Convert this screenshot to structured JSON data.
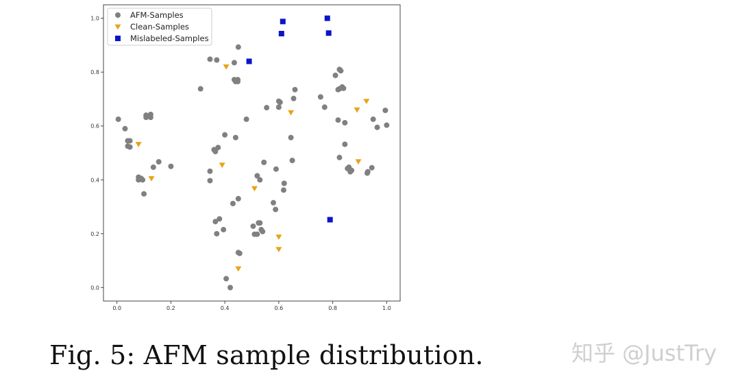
{
  "chart_data": {
    "type": "scatter",
    "title": "",
    "xlabel": "",
    "ylabel": "",
    "xlim": [
      -0.05,
      1.05
    ],
    "ylim": [
      -0.05,
      1.05
    ],
    "xticks": [
      0.0,
      0.2,
      0.4,
      0.6,
      0.8,
      1.0
    ],
    "yticks": [
      0.0,
      0.2,
      0.4,
      0.6,
      0.8,
      1.0
    ],
    "xtick_labels": [
      "0.0",
      "0.2",
      "0.4",
      "0.6",
      "0.8",
      "1.0"
    ],
    "ytick_labels": [
      "0.0",
      "0.2",
      "0.4",
      "0.6",
      "0.8",
      "1.0"
    ],
    "grid": false,
    "legend_position": "top-left",
    "series": [
      {
        "name": "AFM-Samples",
        "marker": "circle",
        "color": "#808080",
        "points": [
          [
            0.005,
            0.625
          ],
          [
            0.03,
            0.59
          ],
          [
            0.04,
            0.545
          ],
          [
            0.048,
            0.545
          ],
          [
            0.04,
            0.525
          ],
          [
            0.048,
            0.522
          ],
          [
            0.08,
            0.41
          ],
          [
            0.09,
            0.405
          ],
          [
            0.08,
            0.4
          ],
          [
            0.095,
            0.4
          ],
          [
            0.1,
            0.348
          ],
          [
            0.108,
            0.64
          ],
          [
            0.108,
            0.632
          ],
          [
            0.125,
            0.643
          ],
          [
            0.125,
            0.632
          ],
          [
            0.135,
            0.447
          ],
          [
            0.155,
            0.467
          ],
          [
            0.2,
            0.45
          ],
          [
            0.31,
            0.738
          ],
          [
            0.345,
            0.848
          ],
          [
            0.37,
            0.845
          ],
          [
            0.345,
            0.432
          ],
          [
            0.345,
            0.397
          ],
          [
            0.36,
            0.512
          ],
          [
            0.365,
            0.505
          ],
          [
            0.375,
            0.52
          ],
          [
            0.365,
            0.245
          ],
          [
            0.38,
            0.255
          ],
          [
            0.37,
            0.2
          ],
          [
            0.395,
            0.215
          ],
          [
            0.4,
            0.567
          ],
          [
            0.405,
            0.033
          ],
          [
            0.42,
            0.0
          ],
          [
            0.435,
            0.835
          ],
          [
            0.435,
            0.772
          ],
          [
            0.44,
            0.765
          ],
          [
            0.448,
            0.772
          ],
          [
            0.448,
            0.765
          ],
          [
            0.45,
            0.893
          ],
          [
            0.44,
            0.557
          ],
          [
            0.43,
            0.312
          ],
          [
            0.45,
            0.33
          ],
          [
            0.45,
            0.13
          ],
          [
            0.455,
            0.127
          ],
          [
            0.48,
            0.625
          ],
          [
            0.52,
            0.415
          ],
          [
            0.53,
            0.4
          ],
          [
            0.545,
            0.465
          ],
          [
            0.505,
            0.228
          ],
          [
            0.51,
            0.198
          ],
          [
            0.52,
            0.198
          ],
          [
            0.525,
            0.24
          ],
          [
            0.53,
            0.24
          ],
          [
            0.535,
            0.215
          ],
          [
            0.54,
            0.208
          ],
          [
            0.555,
            0.668
          ],
          [
            0.58,
            0.315
          ],
          [
            0.588,
            0.29
          ],
          [
            0.59,
            0.44
          ],
          [
            0.6,
            0.692
          ],
          [
            0.605,
            0.688
          ],
          [
            0.6,
            0.67
          ],
          [
            0.62,
            0.387
          ],
          [
            0.618,
            0.362
          ],
          [
            0.645,
            0.557
          ],
          [
            0.65,
            0.472
          ],
          [
            0.655,
            0.702
          ],
          [
            0.66,
            0.735
          ],
          [
            0.755,
            0.708
          ],
          [
            0.77,
            0.67
          ],
          [
            0.81,
            0.788
          ],
          [
            0.825,
            0.81
          ],
          [
            0.83,
            0.805
          ],
          [
            0.82,
            0.735
          ],
          [
            0.825,
            0.738
          ],
          [
            0.835,
            0.745
          ],
          [
            0.84,
            0.74
          ],
          [
            0.82,
            0.622
          ],
          [
            0.845,
            0.612
          ],
          [
            0.825,
            0.483
          ],
          [
            0.845,
            0.532
          ],
          [
            0.855,
            0.442
          ],
          [
            0.86,
            0.447
          ],
          [
            0.865,
            0.43
          ],
          [
            0.87,
            0.435
          ],
          [
            0.93,
            0.43
          ],
          [
            0.928,
            0.425
          ],
          [
            0.945,
            0.445
          ],
          [
            0.95,
            0.625
          ],
          [
            0.965,
            0.595
          ],
          [
            0.995,
            0.658
          ],
          [
            1.0,
            0.603
          ]
        ]
      },
      {
        "name": "Clean-Samples",
        "marker": "triangle-down",
        "color": "#E8A317",
        "points": [
          [
            0.08,
            0.532
          ],
          [
            0.128,
            0.405
          ],
          [
            0.39,
            0.455
          ],
          [
            0.405,
            0.82
          ],
          [
            0.45,
            0.07
          ],
          [
            0.51,
            0.368
          ],
          [
            0.6,
            0.188
          ],
          [
            0.6,
            0.142
          ],
          [
            0.645,
            0.65
          ],
          [
            0.89,
            0.66
          ],
          [
            0.895,
            0.468
          ],
          [
            0.925,
            0.692
          ]
        ]
      },
      {
        "name": "Mislabeled-Samples",
        "marker": "square",
        "color": "#0A14C8",
        "points": [
          [
            0.49,
            0.84
          ],
          [
            0.61,
            0.943
          ],
          [
            0.615,
            0.988
          ],
          [
            0.78,
            1.0
          ],
          [
            0.785,
            0.945
          ],
          [
            0.79,
            0.252
          ]
        ]
      }
    ]
  },
  "caption": "Fig. 5: AFM sample distribution.",
  "watermark": "知乎 @JustTry"
}
